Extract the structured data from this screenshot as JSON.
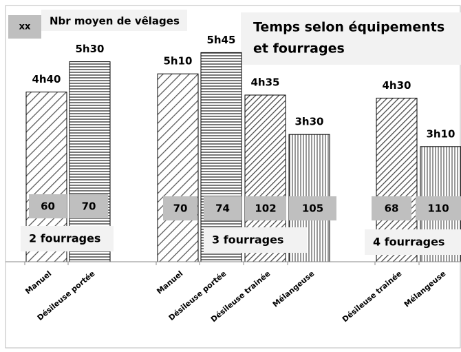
{
  "chart_data": {
    "type": "bar",
    "title": [
      "Temps selon équipements",
      "et fourrages"
    ],
    "legend": {
      "symbol": "xx",
      "label": "Nbr moyen de vêlages"
    },
    "groups": [
      {
        "name": "2 fourrages",
        "categories": [
          "Manuel",
          "Désileuse portée"
        ],
        "values": [
          280,
          330
        ],
        "value_labels": [
          "4h40",
          "5h30"
        ],
        "counts": [
          60,
          70
        ],
        "patterns": [
          "diag-wide",
          "horizontal"
        ]
      },
      {
        "name": "3 fourrages",
        "categories": [
          "Manuel",
          "Désileuse portée",
          "Désileuse trainée",
          "Mélangeuse"
        ],
        "values": [
          310,
          345,
          275,
          210
        ],
        "value_labels": [
          "5h10",
          "5h45",
          "4h35",
          "3h30"
        ],
        "counts": [
          70,
          74,
          102,
          105
        ],
        "patterns": [
          "diag-wide",
          "horizontal",
          "diag-dense",
          "vertical"
        ]
      },
      {
        "name": "4 fourrages",
        "categories": [
          "Désileuse trainée",
          "Mélangeuse"
        ],
        "values": [
          270,
          190
        ],
        "value_labels": [
          "4h30",
          "3h10"
        ],
        "counts": [
          68,
          110
        ],
        "patterns": [
          "diag-dense",
          "vertical"
        ]
      }
    ]
  }
}
